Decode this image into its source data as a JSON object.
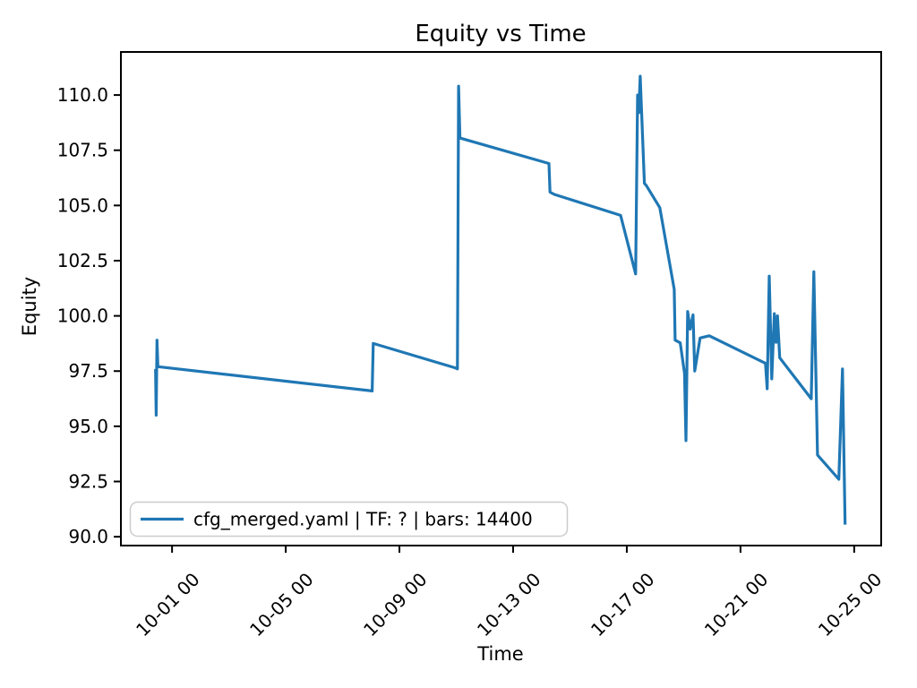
{
  "chart_data": {
    "type": "line",
    "title": "Equity vs Time",
    "xlabel": "Time",
    "ylabel": "Equity",
    "grid": false,
    "legend_position": "lower left",
    "line_color": "#1f77b4",
    "frame_color": "#000000",
    "x_unit": "day of October (fractional, month 10)",
    "xlim": [
      -0.8,
      25.95
    ],
    "ylim": [
      89.6,
      111.95
    ],
    "x_ticks": [
      {
        "day": 1,
        "label": "10-01 00"
      },
      {
        "day": 5,
        "label": "10-05 00"
      },
      {
        "day": 9,
        "label": "10-09 00"
      },
      {
        "day": 13,
        "label": "10-13 00"
      },
      {
        "day": 17,
        "label": "10-17 00"
      },
      {
        "day": 21,
        "label": "10-21 00"
      },
      {
        "day": 25,
        "label": "10-25 00"
      }
    ],
    "y_ticks": [
      {
        "value": 90.0,
        "label": "90.0"
      },
      {
        "value": 92.5,
        "label": "92.5"
      },
      {
        "value": 95.0,
        "label": "95.0"
      },
      {
        "value": 97.5,
        "label": "97.5"
      },
      {
        "value": 100.0,
        "label": "100.0"
      },
      {
        "value": 102.5,
        "label": "102.5"
      },
      {
        "value": 105.0,
        "label": "105.0"
      },
      {
        "value": 107.5,
        "label": "107.5"
      },
      {
        "value": 110.0,
        "label": "110.0"
      }
    ],
    "series": [
      {
        "name": "cfg_merged.yaml | TF: ? | bars: 14400",
        "color": "#1f77b4",
        "points": [
          [
            0.42,
            97.6
          ],
          [
            0.44,
            95.5
          ],
          [
            0.47,
            98.9
          ],
          [
            0.5,
            97.7
          ],
          [
            8.04,
            96.6
          ],
          [
            8.08,
            98.75
          ],
          [
            10.95,
            97.65
          ],
          [
            11.04,
            97.6
          ],
          [
            11.08,
            110.4
          ],
          [
            11.13,
            108.05
          ],
          [
            14.26,
            106.9
          ],
          [
            14.3,
            105.6
          ],
          [
            14.45,
            105.5
          ],
          [
            16.78,
            104.55
          ],
          [
            16.95,
            103.7
          ],
          [
            17.31,
            101.9
          ],
          [
            17.38,
            110.0
          ],
          [
            17.42,
            109.2
          ],
          [
            17.47,
            110.85
          ],
          [
            17.62,
            106.0
          ],
          [
            17.69,
            105.9
          ],
          [
            18.16,
            104.9
          ],
          [
            18.67,
            101.2
          ],
          [
            18.7,
            98.9
          ],
          [
            18.88,
            98.78
          ],
          [
            19.03,
            97.4
          ],
          [
            19.08,
            94.35
          ],
          [
            19.14,
            100.2
          ],
          [
            19.23,
            99.4
          ],
          [
            19.33,
            100.05
          ],
          [
            19.39,
            97.5
          ],
          [
            19.58,
            99.0
          ],
          [
            19.9,
            99.1
          ],
          [
            21.88,
            97.85
          ],
          [
            21.94,
            96.7
          ],
          [
            22.01,
            101.8
          ],
          [
            22.1,
            97.15
          ],
          [
            22.19,
            100.1
          ],
          [
            22.25,
            98.8
          ],
          [
            22.3,
            100.0
          ],
          [
            22.38,
            98.1
          ],
          [
            23.49,
            96.25
          ],
          [
            23.58,
            102.0
          ],
          [
            23.71,
            93.7
          ],
          [
            24.46,
            92.6
          ],
          [
            24.59,
            97.6
          ],
          [
            24.68,
            90.55
          ]
        ]
      }
    ]
  }
}
